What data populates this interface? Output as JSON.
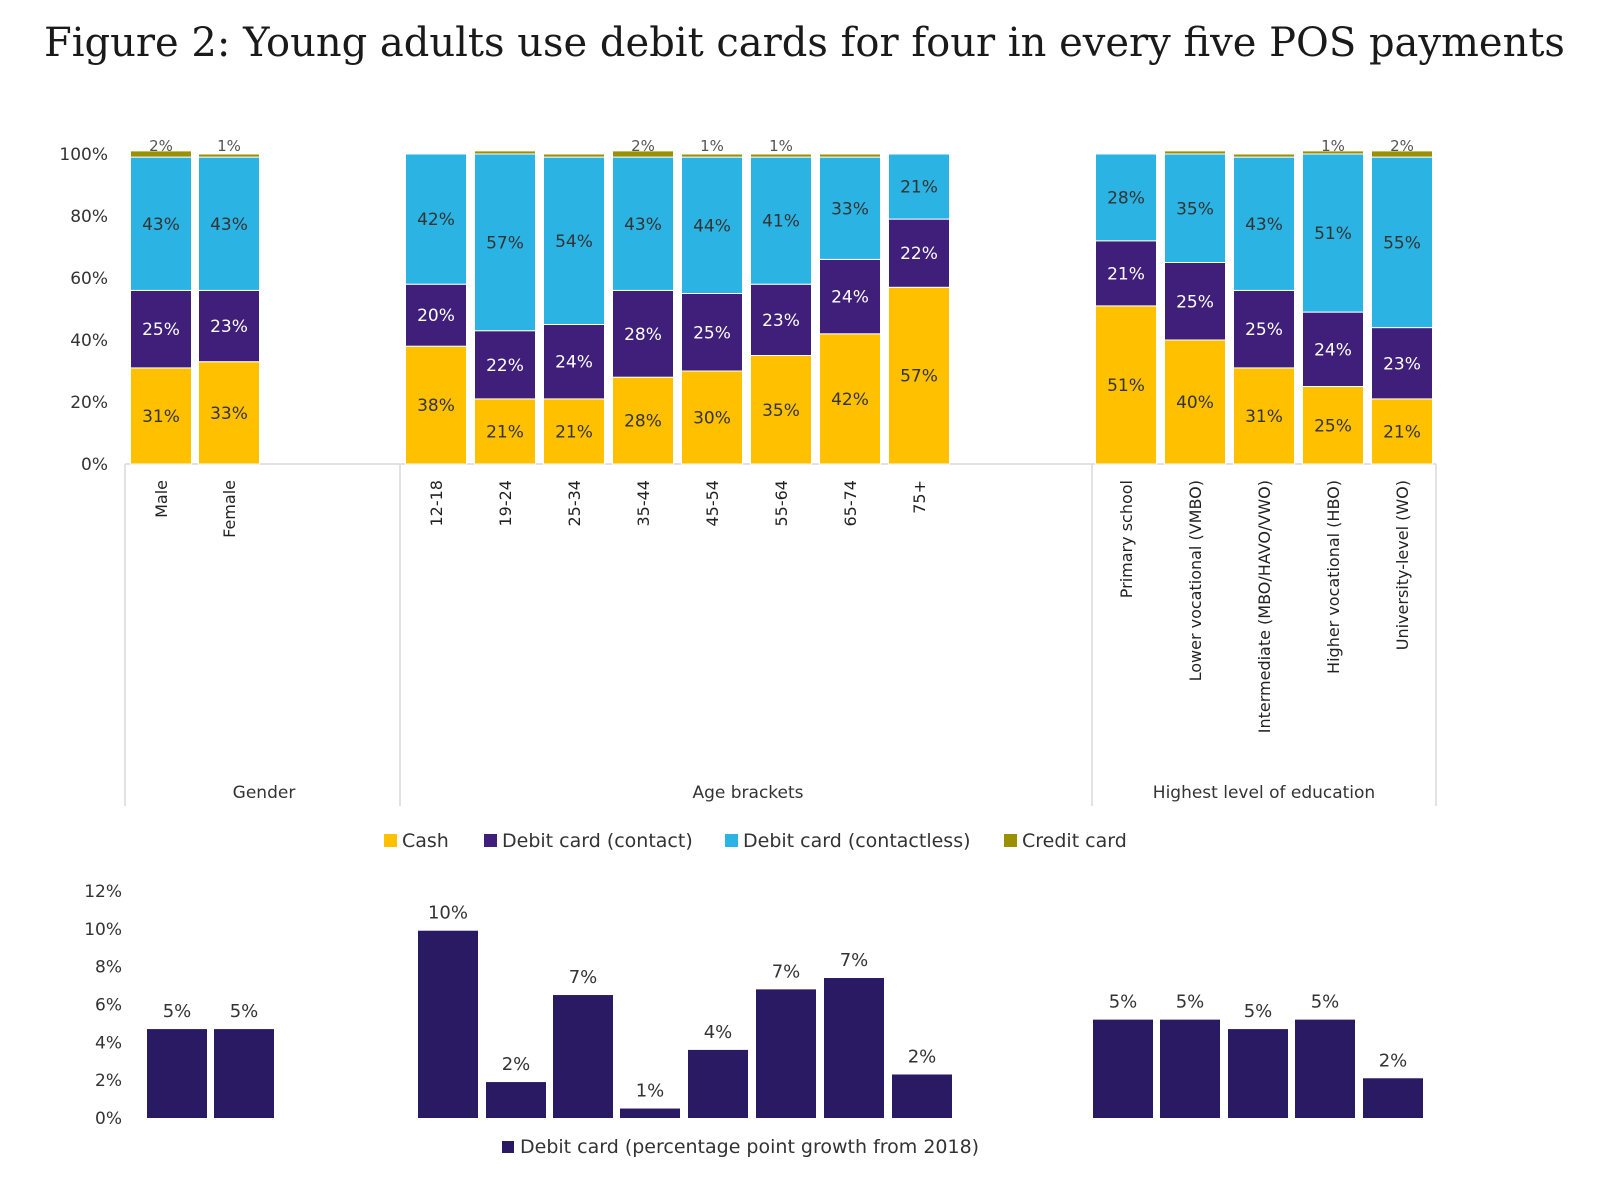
{
  "title": "Figure 2: Young adults use debit cards for four in every five POS payments",
  "colors": {
    "cash": "#FFC000",
    "debit_contact": "#3F1F7A",
    "debit_contactless": "#2BB3E3",
    "credit": "#9B9000",
    "growth": "#2A1A63"
  },
  "chart_data": [
    {
      "type": "bar",
      "stacked": true,
      "ylim": [
        0,
        100
      ],
      "yticks": [
        "0%",
        "20%",
        "40%",
        "60%",
        "80%",
        "100%"
      ],
      "groups": [
        {
          "label": "Gender",
          "categories": [
            "Male",
            "Female"
          ]
        },
        {
          "label": "Age brackets",
          "categories": [
            "12-18",
            "19-24",
            "25-34",
            "35-44",
            "45-54",
            "55-64",
            "65-74",
            "75+"
          ]
        },
        {
          "label": "Highest level of education",
          "categories": [
            "Primary school",
            "Lower vocational (VMBO)",
            "Intermediate (MBO/HAVO/VWO)",
            "Higher vocational (HBO)",
            "University-level (WO)"
          ]
        }
      ],
      "series": [
        {
          "name": "Cash",
          "key": "cash",
          "values": [
            31,
            33,
            38,
            21,
            21,
            28,
            30,
            35,
            42,
            57,
            51,
            40,
            31,
            25,
            21
          ]
        },
        {
          "name": "Debit card (contact)",
          "key": "debit_contact",
          "values": [
            25,
            23,
            20,
            22,
            24,
            28,
            25,
            23,
            24,
            22,
            21,
            25,
            25,
            24,
            23
          ]
        },
        {
          "name": "Debit card (contactless)",
          "key": "debit_contactless",
          "values": [
            43,
            43,
            42,
            57,
            54,
            43,
            44,
            41,
            33,
            21,
            28,
            35,
            43,
            51,
            55
          ]
        },
        {
          "name": "Credit card",
          "key": "credit",
          "values": [
            2,
            1,
            0,
            1,
            1,
            2,
            1,
            1,
            1,
            0,
            0,
            1,
            1,
            1,
            2
          ]
        }
      ],
      "labels": {
        "cash": [
          "31%",
          "33%",
          "38%",
          "21%",
          "21%",
          "28%",
          "30%",
          "35%",
          "42%",
          "57%",
          "51%",
          "40%",
          "31%",
          "25%",
          "21%"
        ],
        "debit_contact": [
          "25%",
          "23%",
          "20%",
          "22%",
          "24%",
          "28%",
          "25%",
          "23%",
          "24%",
          "22%",
          "21%",
          "25%",
          "25%",
          "24%",
          "23%"
        ],
        "debit_contactless": [
          "43%",
          "43%",
          "42%",
          "57%",
          "54%",
          "43%",
          "44%",
          "41%",
          "33%",
          "21%",
          "28%",
          "35%",
          "43%",
          "51%",
          "55%"
        ],
        "credit": [
          "2%",
          "1%",
          "",
          "",
          "",
          "2%",
          "1%",
          "1%",
          "",
          "",
          "",
          "",
          "",
          "1%",
          "2%"
        ]
      }
    },
    {
      "type": "bar",
      "ylim": [
        0,
        12
      ],
      "yticks": [
        "0%",
        "2%",
        "4%",
        "6%",
        "8%",
        "10%",
        "12%"
      ],
      "series": [
        {
          "name": "Debit card (percentage point growth from 2018)",
          "values": [
            4.7,
            4.7,
            9.9,
            1.9,
            6.5,
            0.5,
            3.6,
            6.8,
            7.4,
            2.3,
            5.2,
            5.2,
            4.7,
            5.2,
            2.1
          ]
        }
      ],
      "labels": [
        "5%",
        "5%",
        "10%",
        "2%",
        "7%",
        "1%",
        "4%",
        "7%",
        "7%",
        "2%",
        "5%",
        "5%",
        "5%",
        "5%",
        "2%"
      ]
    }
  ]
}
